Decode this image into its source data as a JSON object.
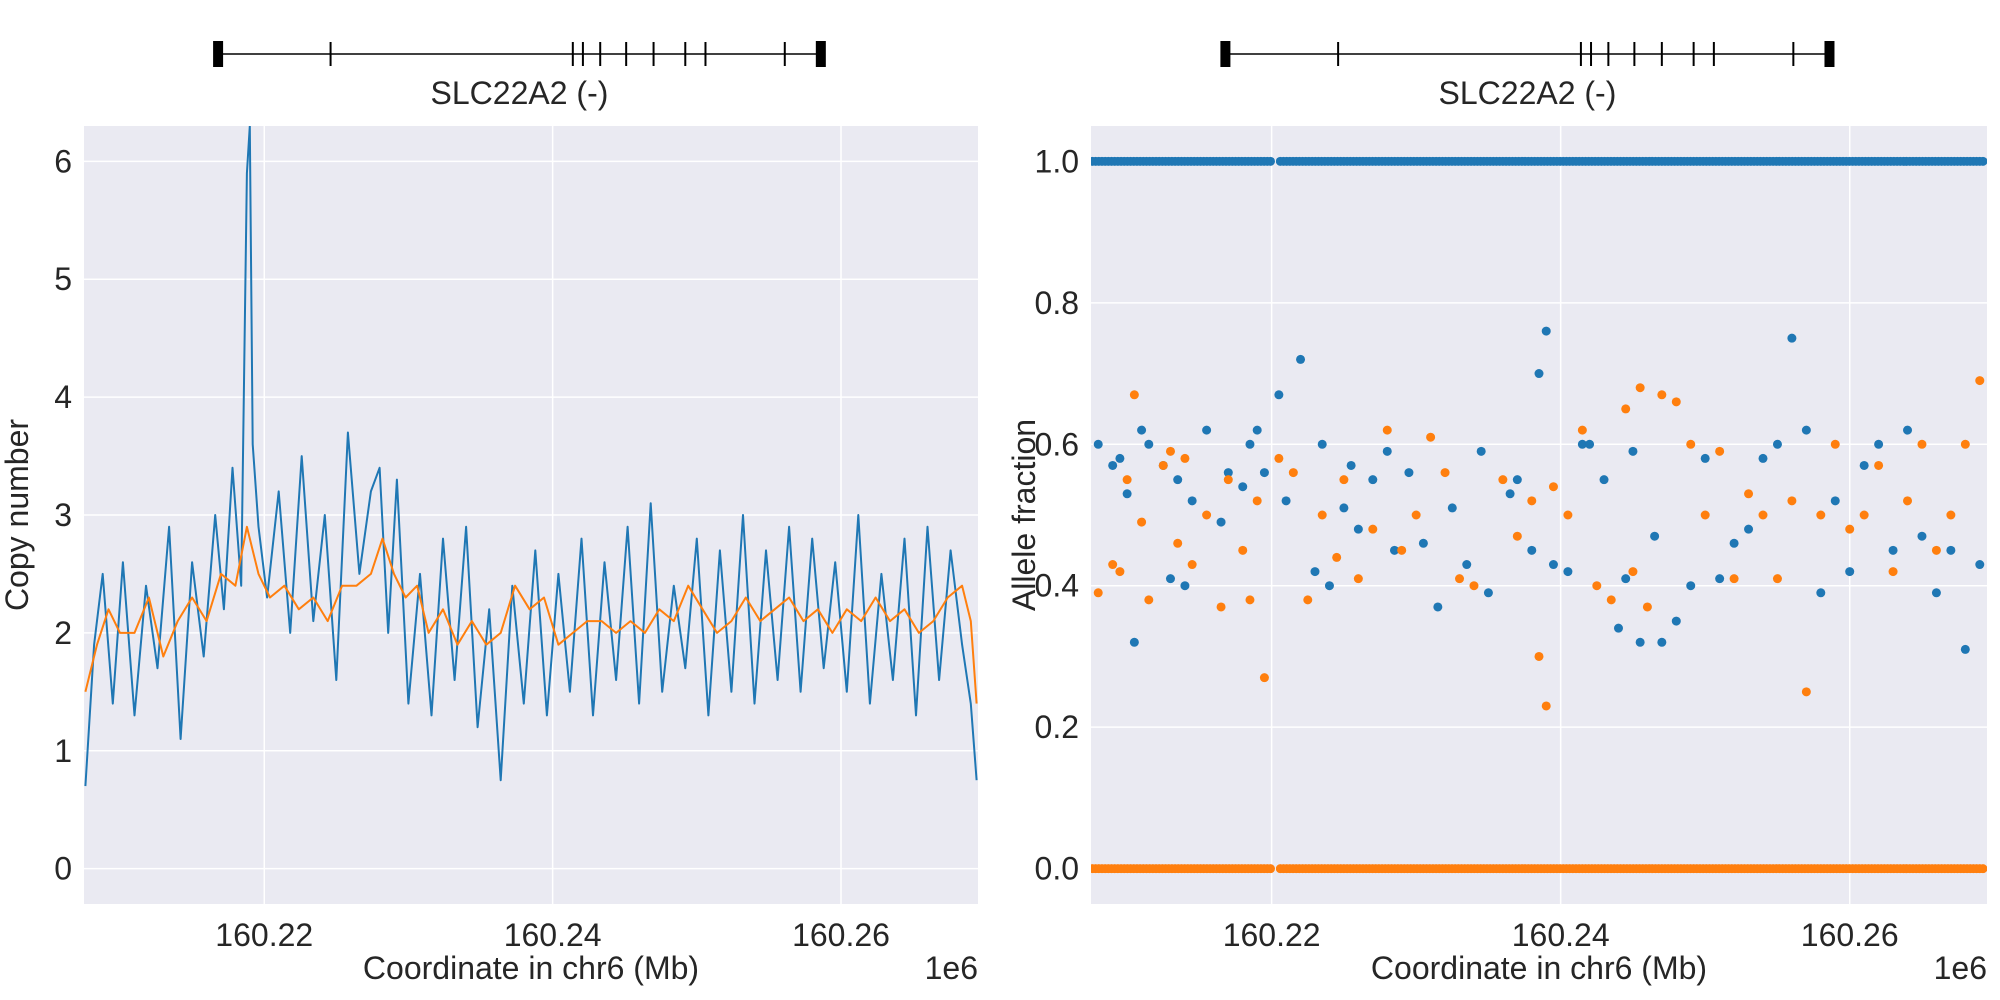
{
  "colors": {
    "cn_raw": "#1f77b4",
    "cn_smooth": "#ff7f0e",
    "maf_upper": "#1f77b4",
    "maf_lower": "#ff7f0e",
    "axes_bg": "#eaeaf2",
    "grid": "#ffffff"
  },
  "chart_data": [
    {
      "type": "line",
      "gene_track": {
        "label": "SLC22A2 (-)",
        "start": 160216800,
        "end": 160258600,
        "exons": [
          160216800,
          160224600,
          160241400,
          160242100,
          160243300,
          160245100,
          160247000,
          160249200,
          160250600,
          160256100,
          160258600
        ],
        "large_exons": [
          160216800,
          160258600
        ]
      },
      "xlabel": "Coordinate in chr6 (Mb)",
      "ylabel": "Copy number",
      "x_offset_label": "1e6",
      "xlim": [
        160207500,
        160269500
      ],
      "ylim": [
        -0.3,
        6.3
      ],
      "xticks": [
        160220000,
        160240000,
        160260000
      ],
      "xtick_labels": [
        "160.22",
        "160.24",
        "160.26"
      ],
      "yticks": [
        0,
        1,
        2,
        3,
        4,
        5,
        6
      ],
      "ytick_labels": [
        "0",
        "1",
        "2",
        "3",
        "4",
        "5",
        "6"
      ],
      "grid": true,
      "series": [
        {
          "x": [
            160207600,
            160208200,
            160208800,
            160209500,
            160210200,
            160211000,
            160211800,
            160212600,
            160213400,
            160214200,
            160215000,
            160215800,
            160216600,
            160217200,
            160217800,
            160218400,
            160218800,
            160219000,
            160219200,
            160219600,
            160220200,
            160221000,
            160221800,
            160222600,
            160223400,
            160224200,
            160225000,
            160225800,
            160226600,
            160227400,
            160228000,
            160228600,
            160229200,
            160230000,
            160230800,
            160231600,
            160232400,
            160233200,
            160234000,
            160234800,
            160235600,
            160236400,
            160237200,
            160238000,
            160238800,
            160239600,
            160240400,
            160241200,
            160242000,
            160242800,
            160243600,
            160244400,
            160245200,
            160246000,
            160246800,
            160247600,
            160248400,
            160249200,
            160250000,
            160250800,
            160251600,
            160252400,
            160253200,
            160254000,
            160254800,
            160255600,
            160256400,
            160257200,
            160258000,
            160258800,
            160259600,
            160260400,
            160261200,
            160262000,
            160262800,
            160263600,
            160264400,
            160265200,
            160266000,
            160266800,
            160267600,
            160268400,
            160269000,
            160269400
          ],
          "y": [
            0.7,
            1.9,
            2.5,
            1.4,
            2.6,
            1.3,
            2.4,
            1.7,
            2.9,
            1.1,
            2.6,
            1.8,
            3.0,
            2.2,
            3.4,
            2.4,
            5.9,
            6.3,
            3.6,
            2.9,
            2.3,
            3.2,
            2.0,
            3.5,
            2.1,
            3.0,
            1.6,
            3.7,
            2.5,
            3.2,
            3.4,
            2.0,
            3.3,
            1.4,
            2.5,
            1.3,
            2.8,
            1.6,
            2.9,
            1.2,
            2.2,
            0.75,
            2.4,
            1.4,
            2.7,
            1.3,
            2.5,
            1.5,
            2.8,
            1.3,
            2.6,
            1.6,
            2.9,
            1.4,
            3.1,
            1.5,
            2.4,
            1.7,
            2.8,
            1.3,
            2.7,
            1.5,
            3.0,
            1.4,
            2.7,
            1.6,
            2.9,
            1.5,
            2.8,
            1.7,
            2.6,
            1.5,
            3.0,
            1.4,
            2.5,
            1.6,
            2.8,
            1.3,
            2.9,
            1.6,
            2.7,
            1.9,
            1.4,
            0.75
          ]
        },
        {
          "x": [
            160207600,
            160208400,
            160209200,
            160210000,
            160211000,
            160212000,
            160213000,
            160214000,
            160215000,
            160216000,
            160217000,
            160218000,
            160218800,
            160219600,
            160220400,
            160221400,
            160222400,
            160223400,
            160224400,
            160225400,
            160226400,
            160227400,
            160228200,
            160229000,
            160229800,
            160230600,
            160231400,
            160232400,
            160233400,
            160234400,
            160235400,
            160236400,
            160237400,
            160238400,
            160239400,
            160240400,
            160241400,
            160242400,
            160243400,
            160244400,
            160245400,
            160246400,
            160247400,
            160248400,
            160249400,
            160250400,
            160251400,
            160252400,
            160253400,
            160254400,
            160255400,
            160256400,
            160257400,
            160258400,
            160259400,
            160260400,
            160261400,
            160262400,
            160263400,
            160264400,
            160265400,
            160266400,
            160267400,
            160268400,
            160269000,
            160269400
          ],
          "y": [
            1.5,
            1.9,
            2.2,
            2.0,
            2.0,
            2.3,
            1.8,
            2.1,
            2.3,
            2.1,
            2.5,
            2.4,
            2.9,
            2.5,
            2.3,
            2.4,
            2.2,
            2.3,
            2.1,
            2.4,
            2.4,
            2.5,
            2.8,
            2.5,
            2.3,
            2.4,
            2.0,
            2.2,
            1.9,
            2.1,
            1.9,
            2.0,
            2.4,
            2.2,
            2.3,
            1.9,
            2.0,
            2.1,
            2.1,
            2.0,
            2.1,
            2.0,
            2.2,
            2.1,
            2.4,
            2.2,
            2.0,
            2.1,
            2.3,
            2.1,
            2.2,
            2.3,
            2.1,
            2.2,
            2.0,
            2.2,
            2.1,
            2.3,
            2.1,
            2.2,
            2.0,
            2.1,
            2.3,
            2.4,
            2.1,
            1.4
          ]
        }
      ]
    },
    {
      "type": "scatter",
      "gene_track": {
        "label": "SLC22A2 (-)",
        "start": 160216800,
        "end": 160258600,
        "exons": [
          160216800,
          160224600,
          160241400,
          160242100,
          160243300,
          160245100,
          160247000,
          160249200,
          160250600,
          160256100,
          160258600
        ],
        "large_exons": [
          160216800,
          160258600
        ]
      },
      "xlabel": "Coordinate in chr6 (Mb)",
      "ylabel": "Allele fraction",
      "x_offset_label": "1e6",
      "xlim": [
        160207500,
        160269500
      ],
      "ylim": [
        -0.05,
        1.05
      ],
      "xticks": [
        160220000,
        160240000,
        160260000
      ],
      "xtick_labels": [
        "160.22",
        "160.24",
        "160.26"
      ],
      "yticks": [
        0.0,
        0.2,
        0.4,
        0.6,
        0.8,
        1.0
      ],
      "ytick_labels": [
        "0.0",
        "0.2",
        "0.4",
        "0.6",
        "0.8",
        "1.0"
      ],
      "grid": true,
      "constant_bands": [
        {
          "y": 1.0,
          "color": "#1f77b4",
          "x_ranges": [
            [
              160207600,
              160220000
            ],
            [
              160220600,
              160269300
            ]
          ]
        },
        {
          "y": 0.0,
          "color": "#ff7f0e",
          "x_ranges": [
            [
              160207600,
              160220000
            ],
            [
              160220600,
              160269300
            ]
          ]
        }
      ],
      "series": [
        {
          "x": [
            160208000,
            160209000,
            160209500,
            160210000,
            160210500,
            160211000,
            160211500,
            160212500,
            160213000,
            160213500,
            160214000,
            160214500,
            160215500,
            160216500,
            160217000,
            160218000,
            160218500,
            160219000,
            160219500,
            160220500,
            160221000,
            160222000,
            160223000,
            160223500,
            160224000,
            160225000,
            160225500,
            160226000,
            160227000,
            160228000,
            160228500,
            160229500,
            160230500,
            160231500,
            160232500,
            160233500,
            160234500,
            160235000,
            160236500,
            160237000,
            160238000,
            160238500,
            160239000,
            160239500,
            160240500,
            160241500,
            160242000,
            160243000,
            160244000,
            160244500,
            160245000,
            160245500,
            160246500,
            160247000,
            160248000,
            160249000,
            160250000,
            160251000,
            160252000,
            160253000,
            160254000,
            160255000,
            160256000,
            160257000,
            160258000,
            160259000,
            160260000,
            160261000,
            160262000,
            160263000,
            160264000,
            160265000,
            160266000,
            160267000,
            160268000,
            160269000
          ],
          "y": [
            0.6,
            0.57,
            0.58,
            0.53,
            0.32,
            0.62,
            0.6,
            0.57,
            0.41,
            0.55,
            0.4,
            0.52,
            0.62,
            0.49,
            0.56,
            0.54,
            0.6,
            0.62,
            0.56,
            0.67,
            0.52,
            0.72,
            0.42,
            0.6,
            0.4,
            0.51,
            0.57,
            0.48,
            0.55,
            0.59,
            0.45,
            0.56,
            0.46,
            0.37,
            0.51,
            0.43,
            0.59,
            0.39,
            0.53,
            0.55,
            0.45,
            0.7,
            0.76,
            0.43,
            0.42,
            0.6,
            0.6,
            0.55,
            0.34,
            0.41,
            0.59,
            0.32,
            0.47,
            0.32,
            0.35,
            0.4,
            0.58,
            0.41,
            0.46,
            0.48,
            0.58,
            0.6,
            0.75,
            0.62,
            0.39,
            0.52,
            0.42,
            0.57,
            0.6,
            0.45,
            0.62,
            0.47,
            0.39,
            0.45,
            0.31,
            0.43
          ]
        },
        {
          "x": [
            160208000,
            160209000,
            160209500,
            160210000,
            160210500,
            160211000,
            160211500,
            160212500,
            160213000,
            160213500,
            160214000,
            160214500,
            160215500,
            160216500,
            160217000,
            160218000,
            160218500,
            160219000,
            160219500,
            160220500,
            160221500,
            160222500,
            160223500,
            160224500,
            160225000,
            160226000,
            160227000,
            160228000,
            160229000,
            160230000,
            160231000,
            160232000,
            160233000,
            160234000,
            160236000,
            160237000,
            160238000,
            160238500,
            160239000,
            160239500,
            160240500,
            160241500,
            160242500,
            160243500,
            160244500,
            160245000,
            160245500,
            160246000,
            160247000,
            160248000,
            160249000,
            160250000,
            160251000,
            160252000,
            160253000,
            160254000,
            160255000,
            160256000,
            160257000,
            160258000,
            160259000,
            160260000,
            160261000,
            160262000,
            160263000,
            160264000,
            160265000,
            160266000,
            160267000,
            160268000,
            160269000
          ],
          "y": [
            0.39,
            0.43,
            0.42,
            0.55,
            0.67,
            0.49,
            0.38,
            0.57,
            0.59,
            0.46,
            0.58,
            0.43,
            0.5,
            0.37,
            0.55,
            0.45,
            0.38,
            0.52,
            0.27,
            0.58,
            0.56,
            0.38,
            0.5,
            0.44,
            0.55,
            0.41,
            0.48,
            0.62,
            0.45,
            0.5,
            0.61,
            0.56,
            0.41,
            0.4,
            0.55,
            0.47,
            0.52,
            0.3,
            0.23,
            0.54,
            0.5,
            0.62,
            0.4,
            0.38,
            0.65,
            0.42,
            0.68,
            0.37,
            0.67,
            0.66,
            0.6,
            0.5,
            0.59,
            0.41,
            0.53,
            0.5,
            0.41,
            0.52,
            0.25,
            0.5,
            0.6,
            0.48,
            0.5,
            0.57,
            0.42,
            0.52,
            0.6,
            0.45,
            0.5,
            0.6,
            0.69
          ]
        }
      ]
    }
  ]
}
